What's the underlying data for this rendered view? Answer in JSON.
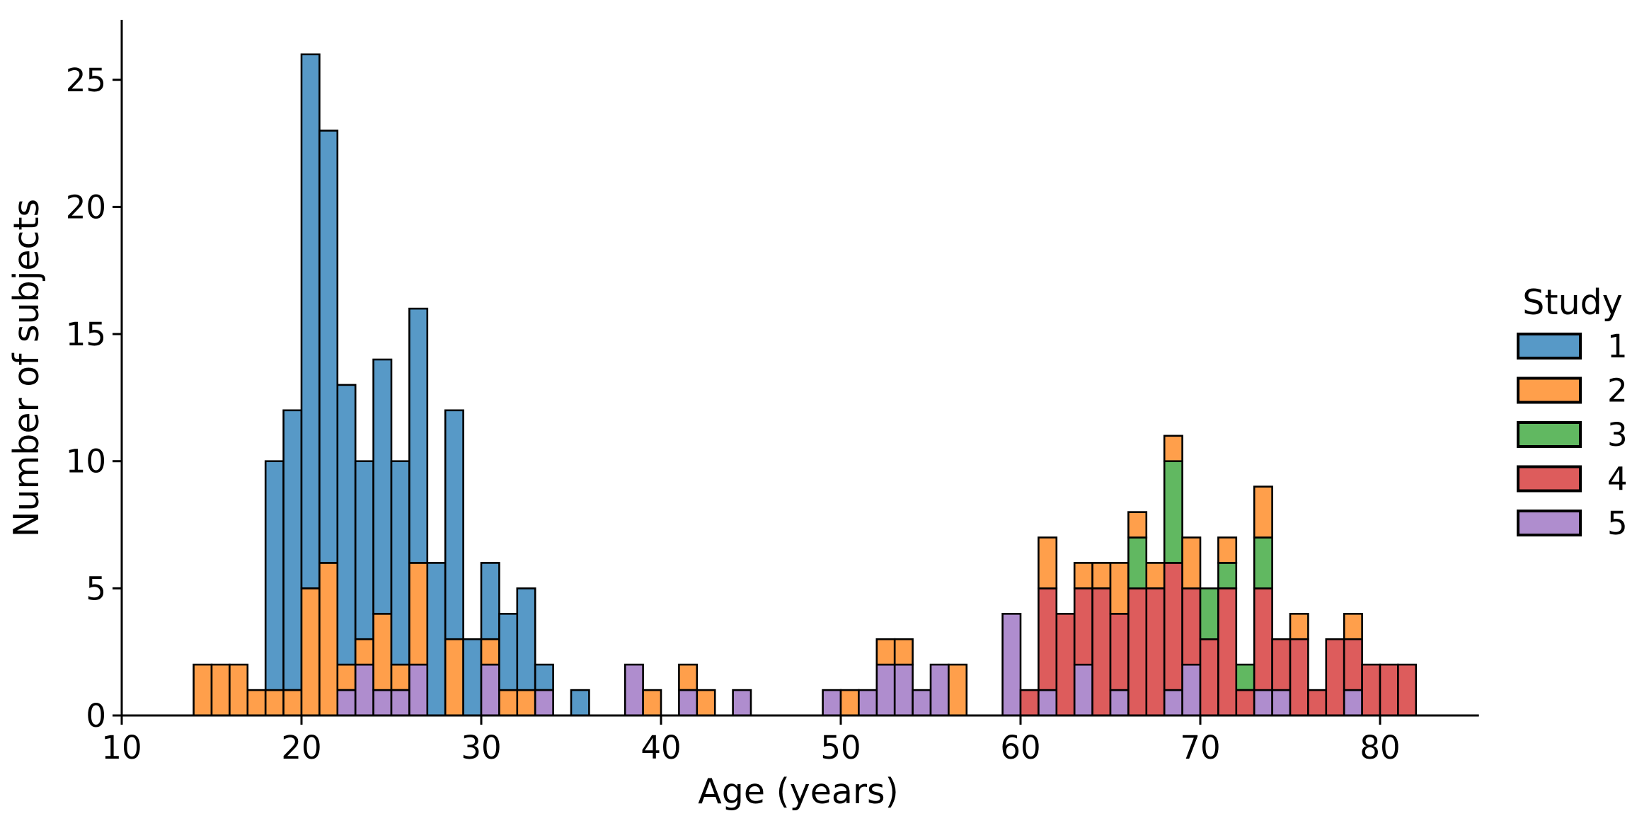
{
  "figure": {
    "background": "#ffffff",
    "text_color": "#000000",
    "edge_color": "#000000"
  },
  "chart_data": {
    "type": "bar",
    "subtype": "stacked_histogram",
    "title": "",
    "xlabel": "Age (years)",
    "ylabel": "Number of subjects",
    "xlim": [
      10,
      85.5
    ],
    "ylim": [
      0,
      27.3
    ],
    "grid": false,
    "bin_width_years": 1,
    "x_ticks": [
      10,
      20,
      30,
      40,
      50,
      60,
      70,
      80
    ],
    "y_ticks": [
      0,
      5,
      10,
      15,
      20,
      25
    ],
    "legend": {
      "title": "Study",
      "position": "right",
      "entries": [
        {
          "label": "1",
          "color": "#5799C7"
        },
        {
          "label": "2",
          "color": "#FF9F4B"
        },
        {
          "label": "3",
          "color": "#61B861"
        },
        {
          "label": "4",
          "color": "#DD5C5C"
        },
        {
          "label": "5",
          "color": "#AF8DCE"
        }
      ]
    },
    "series": [
      {
        "name": "1",
        "color": "#5799C7"
      },
      {
        "name": "2",
        "color": "#FF9F4B"
      },
      {
        "name": "3",
        "color": "#61B861"
      },
      {
        "name": "4",
        "color": "#DD5C5C"
      },
      {
        "name": "5",
        "color": "#AF8DCE"
      }
    ],
    "stack_order_bottom_to_top": [
      "5",
      "4",
      "3",
      "2",
      "1"
    ],
    "bins_note": "counts aligned to series order [study1, study2, study3, study4, study5]; x = bin left edge (age, years)",
    "bins": [
      {
        "x": 14,
        "counts": [
          0,
          2,
          0,
          0,
          0
        ]
      },
      {
        "x": 15,
        "counts": [
          0,
          2,
          0,
          0,
          0
        ]
      },
      {
        "x": 16,
        "counts": [
          0,
          2,
          0,
          0,
          0
        ]
      },
      {
        "x": 17,
        "counts": [
          0,
          1,
          0,
          0,
          0
        ]
      },
      {
        "x": 18,
        "counts": [
          9,
          1,
          0,
          0,
          0
        ]
      },
      {
        "x": 19,
        "counts": [
          11,
          1,
          0,
          0,
          0
        ]
      },
      {
        "x": 20,
        "counts": [
          21,
          5,
          0,
          0,
          0
        ]
      },
      {
        "x": 21,
        "counts": [
          17,
          6,
          0,
          0,
          0
        ]
      },
      {
        "x": 22,
        "counts": [
          11,
          1,
          0,
          0,
          1
        ]
      },
      {
        "x": 23,
        "counts": [
          7,
          1,
          0,
          0,
          2
        ]
      },
      {
        "x": 24,
        "counts": [
          10,
          3,
          0,
          0,
          1
        ]
      },
      {
        "x": 25,
        "counts": [
          8,
          1,
          0,
          0,
          1
        ]
      },
      {
        "x": 26,
        "counts": [
          10,
          4,
          0,
          0,
          2
        ]
      },
      {
        "x": 27,
        "counts": [
          6,
          0,
          0,
          0,
          0
        ]
      },
      {
        "x": 28,
        "counts": [
          9,
          3,
          0,
          0,
          0
        ]
      },
      {
        "x": 29,
        "counts": [
          3,
          0,
          0,
          0,
          0
        ]
      },
      {
        "x": 30,
        "counts": [
          3,
          1,
          0,
          0,
          2
        ]
      },
      {
        "x": 31,
        "counts": [
          3,
          1,
          0,
          0,
          0
        ]
      },
      {
        "x": 32,
        "counts": [
          4,
          1,
          0,
          0,
          0
        ]
      },
      {
        "x": 33,
        "counts": [
          1,
          0,
          0,
          0,
          1
        ]
      },
      {
        "x": 35,
        "counts": [
          1,
          0,
          0,
          0,
          0
        ]
      },
      {
        "x": 38,
        "counts": [
          0,
          0,
          0,
          0,
          2
        ]
      },
      {
        "x": 39,
        "counts": [
          0,
          1,
          0,
          0,
          0
        ]
      },
      {
        "x": 41,
        "counts": [
          0,
          1,
          0,
          0,
          1
        ]
      },
      {
        "x": 42,
        "counts": [
          0,
          1,
          0,
          0,
          0
        ]
      },
      {
        "x": 44,
        "counts": [
          0,
          0,
          0,
          0,
          1
        ]
      },
      {
        "x": 49,
        "counts": [
          0,
          0,
          0,
          0,
          1
        ]
      },
      {
        "x": 50,
        "counts": [
          0,
          1,
          0,
          0,
          0
        ]
      },
      {
        "x": 51,
        "counts": [
          0,
          0,
          0,
          0,
          1
        ]
      },
      {
        "x": 52,
        "counts": [
          0,
          1,
          0,
          0,
          2
        ]
      },
      {
        "x": 53,
        "counts": [
          0,
          1,
          0,
          0,
          2
        ]
      },
      {
        "x": 54,
        "counts": [
          0,
          0,
          0,
          0,
          1
        ]
      },
      {
        "x": 55,
        "counts": [
          0,
          0,
          0,
          0,
          2
        ]
      },
      {
        "x": 56,
        "counts": [
          0,
          2,
          0,
          0,
          0
        ]
      },
      {
        "x": 59,
        "counts": [
          0,
          0,
          0,
          0,
          4
        ]
      },
      {
        "x": 60,
        "counts": [
          0,
          0,
          0,
          1,
          0
        ]
      },
      {
        "x": 61,
        "counts": [
          0,
          2,
          0,
          4,
          1
        ]
      },
      {
        "x": 62,
        "counts": [
          0,
          0,
          0,
          4,
          0
        ]
      },
      {
        "x": 63,
        "counts": [
          0,
          1,
          0,
          3,
          2
        ]
      },
      {
        "x": 64,
        "counts": [
          0,
          1,
          0,
          5,
          0
        ]
      },
      {
        "x": 65,
        "counts": [
          0,
          2,
          0,
          3,
          1
        ]
      },
      {
        "x": 66,
        "counts": [
          0,
          1,
          2,
          5,
          0
        ]
      },
      {
        "x": 67,
        "counts": [
          0,
          1,
          0,
          5,
          0
        ]
      },
      {
        "x": 68,
        "counts": [
          0,
          1,
          4,
          5,
          1
        ]
      },
      {
        "x": 69,
        "counts": [
          0,
          2,
          0,
          3,
          2
        ]
      },
      {
        "x": 70,
        "counts": [
          0,
          0,
          2,
          3,
          0
        ]
      },
      {
        "x": 71,
        "counts": [
          0,
          1,
          1,
          5,
          0
        ]
      },
      {
        "x": 72,
        "counts": [
          0,
          0,
          1,
          1,
          0
        ]
      },
      {
        "x": 73,
        "counts": [
          0,
          2,
          2,
          4,
          1
        ]
      },
      {
        "x": 74,
        "counts": [
          0,
          0,
          0,
          2,
          1
        ]
      },
      {
        "x": 75,
        "counts": [
          0,
          1,
          0,
          3,
          0
        ]
      },
      {
        "x": 76,
        "counts": [
          0,
          0,
          0,
          1,
          0
        ]
      },
      {
        "x": 77,
        "counts": [
          0,
          0,
          0,
          3,
          0
        ]
      },
      {
        "x": 78,
        "counts": [
          0,
          1,
          0,
          2,
          1
        ]
      },
      {
        "x": 79,
        "counts": [
          0,
          0,
          0,
          2,
          0
        ]
      },
      {
        "x": 80,
        "counts": [
          0,
          0,
          0,
          2,
          0
        ]
      },
      {
        "x": 81,
        "counts": [
          0,
          0,
          0,
          2,
          0
        ]
      }
    ]
  }
}
